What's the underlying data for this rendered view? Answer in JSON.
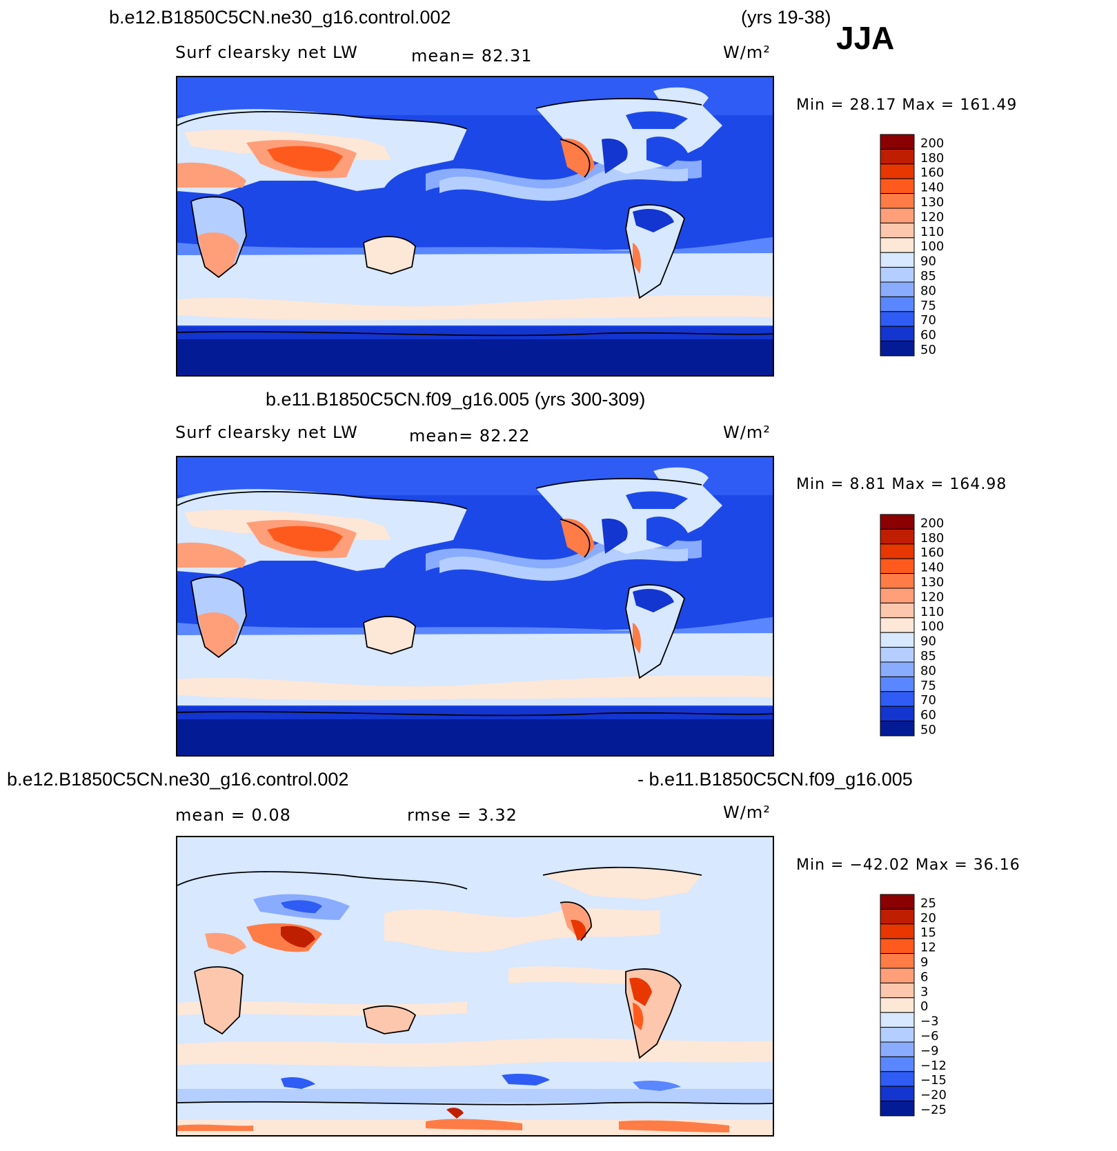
{
  "season": "JJA",
  "chart_data": [
    {
      "type": "heatmap",
      "title": "b.e12.B1850C5CN.ne30_g16.control.002",
      "years": "(yrs 19-38)",
      "variable": "Surf clearsky net LW",
      "mean_text": "mean=   82.31",
      "units": "W/m²",
      "minmax_text": "Min =   28.17  Max =  161.49",
      "min": 28.17,
      "max": 161.49,
      "mean": 82.31,
      "levels": [
        "200",
        "180",
        "160",
        "140",
        "130",
        "120",
        "110",
        "100",
        "90",
        "85",
        "80",
        "75",
        "70",
        "60",
        "50"
      ],
      "colors": [
        "#8b0000",
        "#bf1e00",
        "#e83700",
        "#ff5a1e",
        "#ff7c46",
        "#ff9f7a",
        "#fcc7ad",
        "#fde7d7",
        "#d7e8ff",
        "#b4cfff",
        "#8aacff",
        "#5a87ff",
        "#2e5cf4",
        "#1335d0",
        "#031c96"
      ]
    },
    {
      "type": "heatmap",
      "title": "b.e11.B1850C5CN.f09_g16.005 (yrs 300-309)",
      "variable": "Surf clearsky net LW",
      "mean_text": "mean=   82.22",
      "units": "W/m²",
      "minmax_text": "Min =    8.81  Max =  164.98",
      "min": 8.81,
      "max": 164.98,
      "mean": 82.22,
      "levels": [
        "200",
        "180",
        "160",
        "140",
        "130",
        "120",
        "110",
        "100",
        "90",
        "85",
        "80",
        "75",
        "70",
        "60",
        "50"
      ],
      "colors": [
        "#8b0000",
        "#bf1e00",
        "#e83700",
        "#ff5a1e",
        "#ff7c46",
        "#ff9f7a",
        "#fcc7ad",
        "#fde7d7",
        "#d7e8ff",
        "#b4cfff",
        "#8aacff",
        "#5a87ff",
        "#2e5cf4",
        "#1335d0",
        "#031c96"
      ]
    },
    {
      "type": "heatmap",
      "title_left": "b.e12.B1850C5CN.ne30_g16.control.002",
      "title_right": "- b.e11.B1850C5CN.f09_g16.005",
      "mean_text": "mean =     0.08",
      "rmse_text": "rmse =     3.32",
      "units": "W/m²",
      "minmax_text": "Min = −42.02  Max =   36.16",
      "min": -42.02,
      "max": 36.16,
      "mean": 0.08,
      "rmse": 3.32,
      "levels": [
        "25",
        "20",
        "15",
        "12",
        "9",
        "6",
        "3",
        "0",
        "−3",
        "−6",
        "−9",
        "−12",
        "−15",
        "−20",
        "−25"
      ],
      "colors": [
        "#8b0000",
        "#bf1e00",
        "#e83700",
        "#ff5a1e",
        "#ff7c46",
        "#ff9f7a",
        "#fcc7ad",
        "#fde7d7",
        "#d7e8ff",
        "#b4cfff",
        "#8aacff",
        "#5a87ff",
        "#2e5cf4",
        "#1335d0",
        "#031c96"
      ]
    }
  ]
}
